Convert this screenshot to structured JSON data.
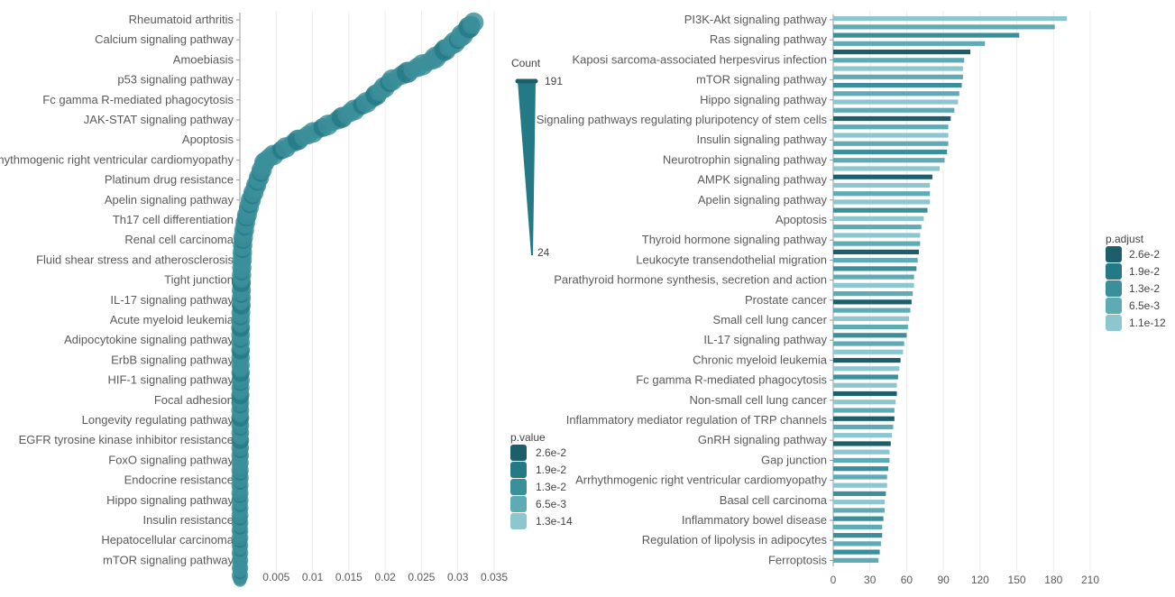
{
  "chart_data": [
    {
      "type": "scatter",
      "title": "",
      "xlabel": "",
      "ylabel": "",
      "xlim": [
        0,
        0.035
      ],
      "x_ticks": [
        "0.005",
        "0.01",
        "0.015",
        "0.02",
        "0.025",
        "0.03",
        "0.035"
      ],
      "x_tick_values": [
        0.005,
        0.01,
        0.015,
        0.02,
        0.025,
        0.03,
        0.035
      ],
      "grid": true,
      "categories": [
        "Rheumatoid arthritis",
        "Calcium signaling pathway",
        "Amoebiasis",
        "p53 signaling pathway",
        "Fc gamma R-mediated phagocytosis",
        "JAK-STAT signaling pathway",
        "Apoptosis",
        "rrhythmogenic right ventricular cardiomyopathy",
        "Platinum drug resistance",
        "Apelin signaling pathway",
        "Th17 cell differentiation",
        "Renal cell carcinoma",
        "Fluid shear stress and atherosclerosis",
        "Tight junction",
        "IL-17 signaling pathway",
        "Acute myeloid leukemia",
        "Adipocytokine signaling pathway",
        "ErbB signaling pathway",
        "HIF-1 signaling pathway",
        "Focal adhesion",
        "Longevity regulating pathway",
        "EGFR tyrosine kinase inhibitor resistance",
        "FoxO signaling pathway",
        "Endocrine resistance",
        "Hippo signaling pathway",
        "Insulin resistance",
        "Hepatocellular carcinoma",
        "mTOR signaling pathway"
      ],
      "values": [
        0.0325,
        0.03,
        0.0265,
        0.021,
        0.018,
        0.0135,
        0.008,
        0.0035,
        0.0025,
        0.0015,
        0.0008,
        0.0004,
        0.0003,
        0.0002,
        0.0002,
        0.0001,
        0.0001,
        0.0001,
        0.0001,
        5e-05,
        5e-05,
        5e-05,
        3e-05,
        2e-05,
        1e-05,
        1e-05,
        1e-05,
        1e-05
      ],
      "legend_size": {
        "title": "Count",
        "max_label": "191",
        "min_label": "24"
      },
      "legend_color": {
        "title": "p.value",
        "labels": [
          "2.6e-2",
          "1.9e-2",
          "1.3e-2",
          "6.5e-3",
          "1.3e-14"
        ]
      },
      "legend_placement": "right"
    },
    {
      "type": "bar",
      "orientation": "horizontal",
      "title": "",
      "xlabel": "",
      "ylabel": "",
      "xlim": [
        0,
        210
      ],
      "x_ticks": [
        "0",
        "30",
        "60",
        "90",
        "120",
        "150",
        "180",
        "210"
      ],
      "x_tick_values": [
        0,
        30,
        60,
        90,
        120,
        150,
        180,
        210
      ],
      "grid": true,
      "categories": [
        "PI3K-Akt signaling pathway",
        "Ras signaling pathway",
        "Kaposi sarcoma-associated herpesvirus infection",
        "mTOR signaling pathway",
        "Hippo signaling pathway",
        "Signaling pathways regulating pluripotency of stem cells",
        "Insulin signaling pathway",
        "Neurotrophin signaling pathway",
        "AMPK signaling pathway",
        "Apelin signaling pathway",
        "Apoptosis",
        "Thyroid hormone signaling pathway",
        "Leukocyte transendothelial migration",
        "Parathyroid hormone synthesis, secretion and action",
        "Prostate cancer",
        "Small cell lung cancer",
        "IL-17 signaling pathway",
        "Chronic myeloid leukemia",
        "Fc gamma R-mediated phagocytosis",
        "Non-small cell lung cancer",
        "Inflammatory mediator regulation of TRP channels",
        "GnRH signaling pathway",
        "Gap junction",
        "Arrhythmogenic right ventricular cardiomyopathy",
        "Basal cell carcinoma",
        "Inflammatory bowel disease",
        "Regulation of lipolysis in adipocytes",
        "Ferroptosis"
      ],
      "bars": [
        [
          191,
          181,
          152,
          124,
          112,
          107,
          106,
          106
        ],
        [
          105,
          103,
          102,
          99,
          96,
          94
        ],
        [
          94,
          94,
          93,
          91,
          87
        ],
        [
          81,
          79,
          79,
          79,
          77
        ],
        [
          74,
          72,
          71,
          71
        ],
        [
          70,
          69,
          68,
          66
        ],
        [
          66,
          65,
          64,
          63
        ],
        [
          62,
          61,
          60
        ],
        [
          58,
          57,
          55
        ],
        [
          54,
          53,
          52
        ],
        [
          52,
          51,
          50
        ],
        [
          50,
          49,
          48
        ],
        [
          47,
          46,
          46
        ],
        [
          45,
          44,
          44
        ],
        [
          43,
          42,
          42
        ],
        [
          41,
          40,
          40
        ],
        [
          39,
          38,
          37
        ]
      ],
      "legend_color": {
        "title": "p.adjust",
        "labels": [
          "2.6e-2",
          "1.9e-2",
          "1.3e-2",
          "6.5e-3",
          "1.1e-12"
        ]
      },
      "legend_placement": "right"
    }
  ]
}
